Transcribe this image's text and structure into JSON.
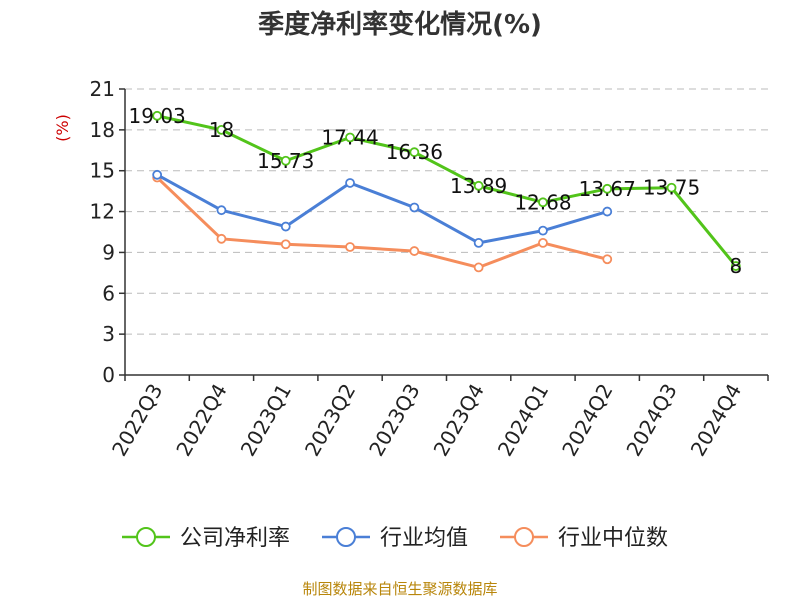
{
  "source_note": "制图数据来自恒生聚源数据库",
  "chart_data": {
    "type": "line",
    "title": "季度净利率变化情况(%)",
    "ylabel": "(%)",
    "xlabel": "",
    "ylim": [
      0,
      21
    ],
    "yticks": [
      0,
      3,
      6,
      9,
      12,
      15,
      18,
      21
    ],
    "grid": true,
    "legend_position": "bottom",
    "categories": [
      "2022Q3",
      "2022Q4",
      "2023Q1",
      "2023Q2",
      "2023Q3",
      "2023Q4",
      "2024Q1",
      "2024Q2",
      "2024Q3",
      "2024Q4"
    ],
    "series": [
      {
        "name": "公司净利率",
        "color": "#52c41a",
        "values": [
          19.03,
          18,
          15.73,
          17.44,
          16.36,
          13.89,
          12.68,
          13.67,
          13.75,
          8
        ],
        "labels": [
          "19.03",
          "18",
          "15.73",
          "17.44",
          "16.36",
          "13.89",
          "12.68",
          "13.67",
          "13.75",
          "8"
        ],
        "show_labels": true
      },
      {
        "name": "行业均值",
        "color": "#4a7fd6",
        "values": [
          14.7,
          12.1,
          10.9,
          14.1,
          12.3,
          9.7,
          10.6,
          12.0,
          null,
          null
        ],
        "show_labels": false
      },
      {
        "name": "行业中位数",
        "color": "#f58d5c",
        "values": [
          14.5,
          10.0,
          9.6,
          9.4,
          9.1,
          7.9,
          9.7,
          8.5,
          null,
          null
        ],
        "show_labels": false
      }
    ]
  }
}
